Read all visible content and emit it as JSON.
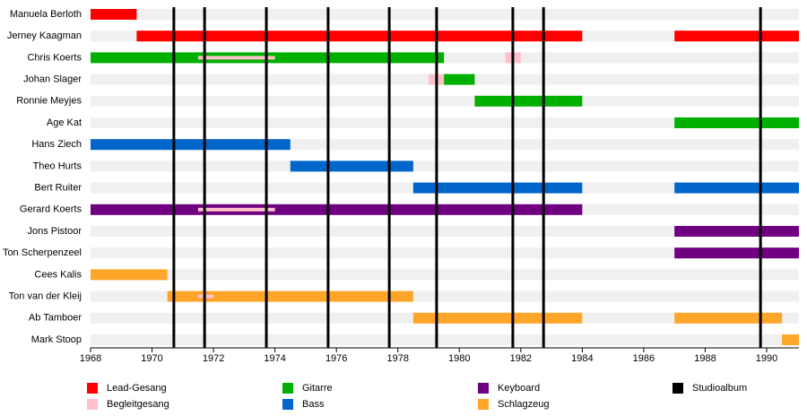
{
  "chart_data": {
    "type": "timeline",
    "xlim": [
      1968,
      1991.05
    ],
    "xticks": [
      1968,
      1970,
      1972,
      1974,
      1976,
      1978,
      1980,
      1982,
      1984,
      1986,
      1988,
      1990
    ],
    "roles": [
      {
        "name": "Lead-Gesang",
        "color": "#ff0000"
      },
      {
        "name": "Begleitgesang",
        "color": "#ffc0cb"
      },
      {
        "name": "Gitarre",
        "color": "#00b000"
      },
      {
        "name": "Bass",
        "color": "#0066cc"
      },
      {
        "name": "Keyboard",
        "color": "#6f0080"
      },
      {
        "name": "Schlagzeug",
        "color": "#ffa52a"
      }
    ],
    "album_legend": {
      "name": "Studioalbum",
      "color": "#000000"
    },
    "albums": [
      1970.71,
      1971.71,
      1973.72,
      1975.73,
      1977.72,
      1979.26,
      1981.74,
      1982.74,
      1989.8
    ],
    "rows": [
      {
        "name": "Manuela Berloth",
        "spans": [
          {
            "start": 1968,
            "end": 1969.5,
            "color": "#ff0000"
          }
        ]
      },
      {
        "name": "Jerney Kaagman",
        "spans": [
          {
            "start": 1969.5,
            "end": 1984,
            "color": "#ff0000"
          },
          {
            "start": 1987,
            "end": 1991.05,
            "color": "#ff0000"
          }
        ]
      },
      {
        "name": "Chris Koerts",
        "spans": [
          {
            "start": 1968,
            "end": 1979.5,
            "color": "#00b000"
          },
          {
            "start": 1971.5,
            "end": 1974,
            "color": "#ffc0cb",
            "overlay": true
          },
          {
            "start": 1981.5,
            "end": 1982,
            "color": "#ffc0cb"
          }
        ]
      },
      {
        "name": "Johan Slager",
        "spans": [
          {
            "start": 1979,
            "end": 1979.5,
            "color": "#ffc0cb"
          },
          {
            "start": 1979.5,
            "end": 1980.5,
            "color": "#00b000"
          }
        ]
      },
      {
        "name": "Ronnie Meyjes",
        "spans": [
          {
            "start": 1980.5,
            "end": 1984,
            "color": "#00b000"
          }
        ]
      },
      {
        "name": "Age Kat",
        "spans": [
          {
            "start": 1987,
            "end": 1991.05,
            "color": "#00b000"
          }
        ]
      },
      {
        "name": "Hans Ziech",
        "spans": [
          {
            "start": 1968,
            "end": 1974.5,
            "color": "#0066cc"
          }
        ]
      },
      {
        "name": "Theo Hurts",
        "spans": [
          {
            "start": 1974.5,
            "end": 1978.5,
            "color": "#0066cc"
          }
        ]
      },
      {
        "name": "Bert Ruiter",
        "spans": [
          {
            "start": 1978.5,
            "end": 1984,
            "color": "#0066cc"
          },
          {
            "start": 1987,
            "end": 1991.05,
            "color": "#0066cc"
          }
        ]
      },
      {
        "name": "Gerard Koerts",
        "spans": [
          {
            "start": 1968,
            "end": 1984,
            "color": "#6f0080"
          },
          {
            "start": 1971.5,
            "end": 1974,
            "color": "#ffc0cb",
            "overlay": true
          }
        ]
      },
      {
        "name": "Jons Pistoor",
        "spans": [
          {
            "start": 1987,
            "end": 1991.05,
            "color": "#6f0080"
          }
        ]
      },
      {
        "name": "Ton Scherpenzeel",
        "spans": [
          {
            "start": 1987,
            "end": 1991.05,
            "color": "#6f0080"
          }
        ]
      },
      {
        "name": "Cees Kalis",
        "spans": [
          {
            "start": 1968,
            "end": 1970.5,
            "color": "#ffa52a"
          }
        ]
      },
      {
        "name": "Ton van der Kleij",
        "spans": [
          {
            "start": 1970.5,
            "end": 1978.5,
            "color": "#ffa52a"
          },
          {
            "start": 1971.5,
            "end": 1972,
            "color": "#ffc0cb",
            "overlay": true
          }
        ]
      },
      {
        "name": "Ab Tamboer",
        "spans": [
          {
            "start": 1978.5,
            "end": 1984,
            "color": "#ffa52a"
          },
          {
            "start": 1987,
            "end": 1990.5,
            "color": "#ffa52a"
          }
        ]
      },
      {
        "name": "Mark Stoop",
        "spans": [
          {
            "start": 1990.5,
            "end": 1991.05,
            "color": "#ffa52a"
          }
        ]
      }
    ]
  }
}
